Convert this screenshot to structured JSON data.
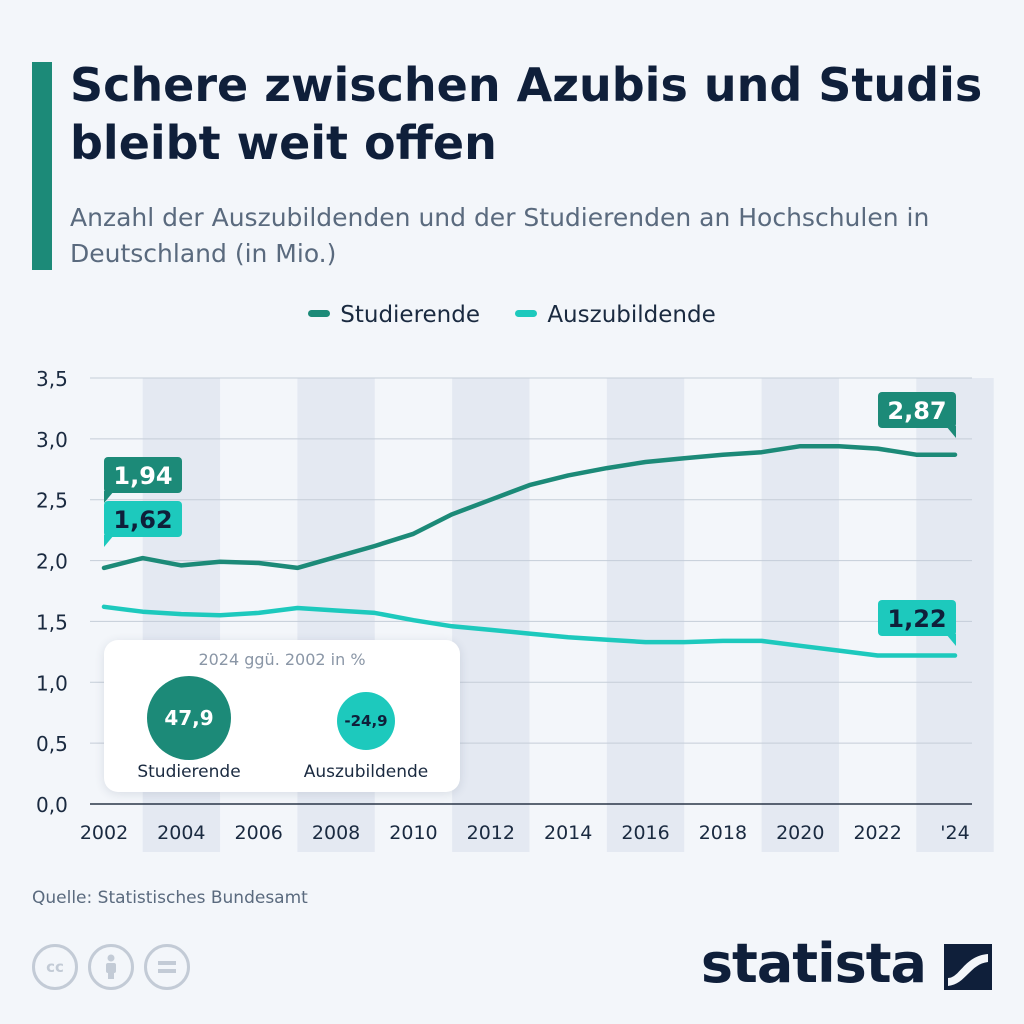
{
  "header": {
    "title": "Schere zwischen Azubis und Studis bleibt weit offen",
    "subtitle": "Anzahl der Auszubildenden und der Studierenden an Hochschulen in Deutschland (in Mio.)",
    "accent_color": "#1c8a78"
  },
  "chart_data": {
    "type": "line",
    "title": "Schere zwischen Azubis und Studis bleibt weit offen",
    "subtitle": "Anzahl der Auszubildenden und der Studierenden an Hochschulen in Deutschland (in Mio.)",
    "x": [
      2002,
      2003,
      2004,
      2005,
      2006,
      2007,
      2008,
      2009,
      2010,
      2011,
      2012,
      2013,
      2014,
      2015,
      2016,
      2017,
      2018,
      2019,
      2020,
      2021,
      2022,
      2023,
      2024
    ],
    "series": [
      {
        "name": "Studierende",
        "color": "#1c8a78",
        "values": [
          1.94,
          2.02,
          1.96,
          1.99,
          1.98,
          1.94,
          2.03,
          2.12,
          2.22,
          2.38,
          2.5,
          2.62,
          2.7,
          2.76,
          2.81,
          2.84,
          2.87,
          2.89,
          2.94,
          2.94,
          2.92,
          2.87,
          2.87
        ]
      },
      {
        "name": "Auszubildende",
        "color": "#1dc9bd",
        "values": [
          1.62,
          1.58,
          1.56,
          1.55,
          1.57,
          1.61,
          1.59,
          1.57,
          1.51,
          1.46,
          1.43,
          1.4,
          1.37,
          1.35,
          1.33,
          1.33,
          1.34,
          1.34,
          1.3,
          1.26,
          1.22,
          1.22,
          1.22
        ]
      }
    ],
    "xticks": [
      "2002",
      "2004",
      "2006",
      "2008",
      "2010",
      "2012",
      "2014",
      "2016",
      "2018",
      "2020",
      "2022",
      "'24"
    ],
    "yticks": [
      "3,5",
      "3,0",
      "2,5",
      "2,0",
      "1,5",
      "1,0",
      "0,5",
      "0,0"
    ],
    "ylim": [
      0,
      3.5
    ],
    "grid": true,
    "legend_position": "top",
    "annotations": {
      "start_studierende": "1,94",
      "start_auszubildende": "1,62",
      "end_studierende": "2,87",
      "end_auszubildende": "1,22"
    },
    "inset": {
      "title": "2024 ggü. 2002 in %",
      "items": [
        {
          "label": "Studierende",
          "value": "47,9",
          "color": "#1c8a78"
        },
        {
          "label": "Auszubildende",
          "value": "-24,9",
          "color": "#1dc9bd"
        }
      ]
    }
  },
  "footer": {
    "source": "Quelle: Statistisches Bundesamt",
    "brand": "statista",
    "license_icons": [
      "cc-icon",
      "attribution-icon",
      "no-derivatives-icon"
    ]
  }
}
